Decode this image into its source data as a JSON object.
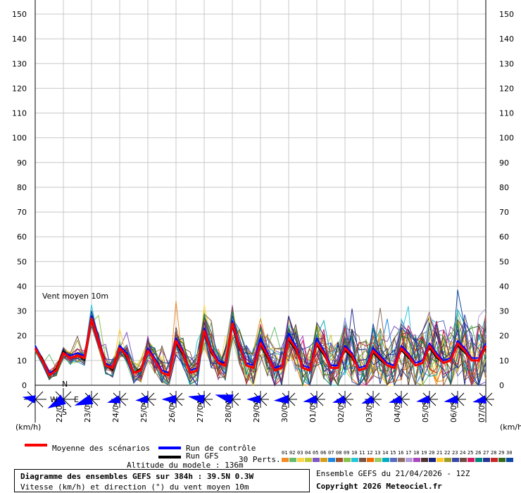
{
  "chart_data": {
    "type": "line",
    "y_axis": {
      "min": 0,
      "max": 150,
      "step": 10,
      "unit_label": "(km/h)"
    },
    "x_date_labels": [
      "22/04",
      "23/04",
      "24/04",
      "25/04",
      "26/04",
      "27/04",
      "28/04",
      "29/04",
      "30/04",
      "01/05",
      "02/05",
      "03/05",
      "04/05",
      "05/05",
      "06/05",
      "07/05"
    ],
    "annotation": "Vent moyen 10m",
    "time_step_hours": 6,
    "series_mean": {
      "name": "Moyenne des scénarios",
      "color": "#ff0000",
      "values": [
        15,
        10,
        4,
        6,
        13,
        11,
        12,
        11,
        27,
        18,
        8,
        7,
        15,
        12,
        5,
        6,
        14,
        10,
        5,
        4,
        18,
        13,
        5,
        6,
        22,
        14,
        9,
        8,
        25,
        16,
        8,
        7,
        17,
        12,
        6,
        7,
        19,
        15,
        7,
        6,
        17,
        13,
        7,
        7,
        15,
        12,
        6,
        7,
        14,
        11,
        8,
        7,
        15,
        12,
        8,
        9,
        16,
        12,
        9,
        10,
        17,
        14,
        10,
        10,
        16
      ]
    },
    "series_control": {
      "name": "Run de contrôle",
      "color": "#0000ff",
      "values": [
        16,
        10,
        5,
        6,
        13,
        12,
        13,
        12,
        28,
        19,
        9,
        7,
        16,
        13,
        5,
        6,
        15,
        11,
        6,
        5,
        19,
        14,
        6,
        7,
        23,
        15,
        10,
        9,
        26,
        17,
        9,
        8,
        19,
        13,
        7,
        8,
        21,
        16,
        8,
        7,
        19,
        14,
        8,
        8,
        16,
        13,
        7,
        8,
        15,
        12,
        9,
        8,
        16,
        13,
        9,
        10,
        17,
        13,
        10,
        11,
        18,
        15,
        11,
        11,
        17
      ]
    },
    "series_gfs": {
      "name": "Run GFS",
      "color": "#000000",
      "values": [
        15,
        11,
        4,
        7,
        14,
        11,
        12,
        10,
        26,
        17,
        8,
        6,
        15,
        11,
        5,
        7,
        14,
        10,
        5,
        4,
        17,
        12,
        5,
        6,
        21,
        13,
        9,
        9,
        24,
        15,
        8,
        7,
        16,
        11,
        6,
        7,
        18,
        14,
        7,
        6,
        16,
        12,
        7,
        7,
        14,
        11,
        6,
        7,
        13,
        10,
        8,
        7,
        14,
        11,
        8,
        9,
        15,
        11,
        9,
        10,
        16,
        13,
        10,
        10,
        15
      ]
    },
    "perturbations": {
      "label": "30 Perts.",
      "count": 30
    },
    "direction_deg": [
      280,
      300,
      330,
      270,
      240,
      250,
      255,
      260,
      250,
      255,
      265,
      260,
      255,
      250,
      245,
      250,
      265,
      260,
      255,
      250,
      270,
      265,
      260,
      255,
      280,
      275,
      270,
      265,
      285,
      280,
      275,
      270,
      270,
      265,
      260,
      255,
      265,
      260,
      255,
      250,
      260,
      255,
      250,
      245,
      255,
      250,
      245,
      240,
      250,
      245,
      240,
      245,
      255,
      250,
      245,
      250,
      260,
      255,
      250,
      255,
      260,
      255,
      250,
      255,
      258
    ],
    "direction_speed": [
      15,
      12,
      26,
      8,
      30,
      10,
      12,
      11,
      28,
      18,
      8,
      7,
      15,
      12,
      5,
      6,
      14,
      10,
      5,
      4,
      18,
      13,
      5,
      6,
      22,
      14,
      9,
      8,
      25,
      16,
      8,
      7,
      17,
      12,
      6,
      7,
      19,
      15,
      7,
      6,
      17,
      13,
      7,
      7,
      15,
      12,
      6,
      7,
      14,
      11,
      8,
      7,
      15,
      12,
      8,
      9,
      16,
      12,
      9,
      10,
      17,
      14,
      10,
      10,
      16
    ]
  },
  "legend": {
    "mean": "Moyenne des scénarios",
    "control": "Run de contrôle",
    "gfs": "Run GFS",
    "perts": "30 Perts.",
    "pert_numbers": [
      "01",
      "02",
      "03",
      "04",
      "05",
      "06",
      "07",
      "08",
      "09",
      "10",
      "11",
      "12",
      "13",
      "14",
      "15",
      "16",
      "17",
      "18",
      "19",
      "20",
      "21",
      "22",
      "23",
      "24",
      "25",
      "26",
      "27",
      "28",
      "29",
      "30"
    ],
    "pert_colors": [
      "#f28b26",
      "#66bb6a",
      "#ffd54f",
      "#c0ca33",
      "#7e57c2",
      "#d4a017",
      "#1e88e5",
      "#a0522d",
      "#8bc34a",
      "#26c6da",
      "#795548",
      "#ef6c00",
      "#9ccc65",
      "#00acc1",
      "#5c6bc0",
      "#8d6e63",
      "#b39ddb",
      "#ab47bc",
      "#4e342e",
      "#1a237e",
      "#ffca28",
      "#9e9d24",
      "#3949ab",
      "#6d4c41",
      "#d81b60",
      "#00897b",
      "#283593",
      "#c62828",
      "#33691e",
      "#0d47a1"
    ]
  },
  "compass": {
    "n": "N",
    "s": "S",
    "e": "E",
    "w": "W"
  },
  "altitude": "Altitude du modele : 136m",
  "info_box": {
    "title": "Diagramme des ensembles GEFS sur 384h : 39.5N 0.3W",
    "subtitle": "Vitesse (km/h) et direction (°) du vent moyen 10m"
  },
  "run_info": "Ensemble GEFS du 21/04/2026 - 12Z",
  "copyright": "Copyright 2026 Meteociel.fr"
}
